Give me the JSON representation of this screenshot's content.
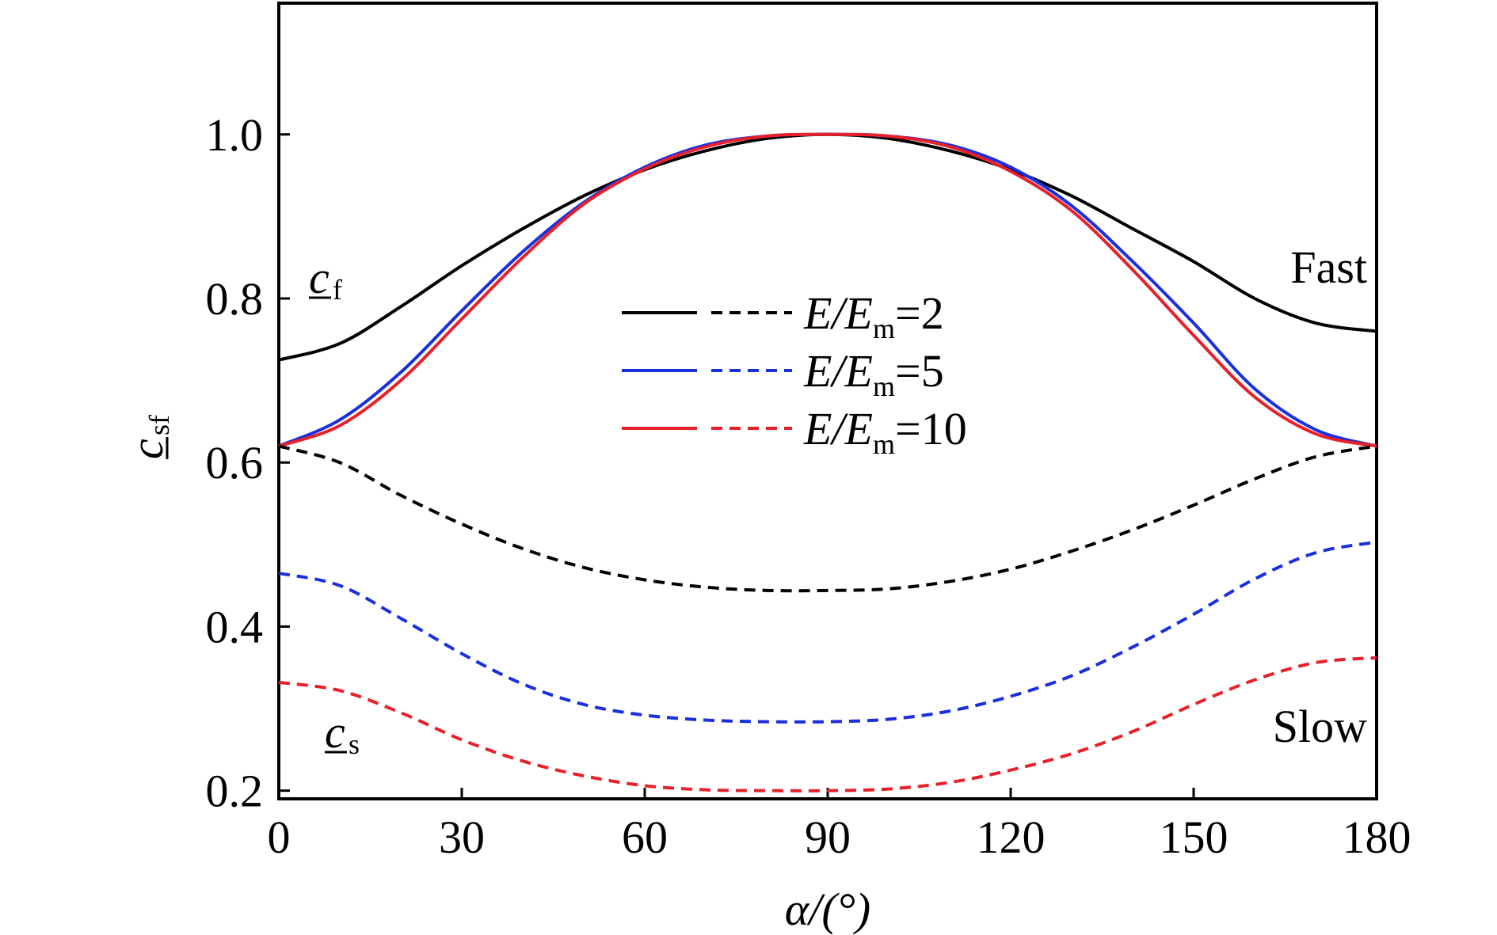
{
  "chart_data": {
    "type": "line",
    "xlabel": "α/(°)",
    "ylabel": "c_sf",
    "xlim": [
      0,
      180
    ],
    "ylim": [
      0.19,
      1.16
    ],
    "xticks": [
      0,
      30,
      60,
      90,
      120,
      150,
      180
    ],
    "yticks": [
      0.2,
      0.4,
      0.6,
      0.8,
      1.0
    ],
    "xtick_labels": [
      "0",
      "30",
      "60",
      "90",
      "120",
      "150",
      "180"
    ],
    "ytick_labels": [
      "0.2",
      "0.4",
      "0.6",
      "0.8",
      "1.0"
    ],
    "grid": false,
    "legend_position": "center",
    "annotations": {
      "fast": "Fast",
      "slow": "Slow",
      "cf_main": "c",
      "cf_sub": "f",
      "cs_main": "c",
      "cs_sub": "s",
      "ylabel_main": "c",
      "ylabel_sub": "sf",
      "xlabel": "α/(°)"
    },
    "legend": [
      {
        "prefix": "E/E",
        "sub": "m",
        "suffix": "=2",
        "color": "#000000"
      },
      {
        "prefix": "E/E",
        "sub": "m",
        "suffix": "=5",
        "color": "#1a2fe0"
      },
      {
        "prefix": "E/E",
        "sub": "m",
        "suffix": "=10",
        "color": "#e8202a"
      }
    ],
    "x": [
      0,
      10,
      20,
      30,
      40,
      50,
      60,
      70,
      80,
      90,
      100,
      110,
      120,
      130,
      140,
      150,
      160,
      170,
      180
    ],
    "series": [
      {
        "group": "E/Em=2",
        "kind": "fast",
        "style": "solid",
        "color": "#000000",
        "values": [
          0.725,
          0.745,
          0.79,
          0.84,
          0.885,
          0.925,
          0.957,
          0.98,
          0.995,
          1.0,
          0.995,
          0.98,
          0.957,
          0.925,
          0.885,
          0.845,
          0.8,
          0.77,
          0.76
        ]
      },
      {
        "group": "E/Em=5",
        "kind": "fast",
        "style": "solid",
        "color": "#1a2fe0",
        "values": [
          0.62,
          0.652,
          0.71,
          0.785,
          0.857,
          0.917,
          0.96,
          0.987,
          0.998,
          1.0,
          0.998,
          0.987,
          0.96,
          0.913,
          0.845,
          0.77,
          0.69,
          0.64,
          0.62
        ]
      },
      {
        "group": "E/Em=10",
        "kind": "fast",
        "style": "solid",
        "color": "#e8202a",
        "values": [
          0.62,
          0.645,
          0.7,
          0.775,
          0.85,
          0.915,
          0.958,
          0.985,
          0.998,
          1.0,
          0.998,
          0.985,
          0.955,
          0.907,
          0.835,
          0.755,
          0.68,
          0.635,
          0.62
        ]
      },
      {
        "group": "E/Em=2",
        "kind": "slow",
        "style": "dashed",
        "color": "#000000",
        "values": [
          0.62,
          0.6,
          0.56,
          0.525,
          0.495,
          0.472,
          0.457,
          0.448,
          0.444,
          0.444,
          0.446,
          0.455,
          0.47,
          0.492,
          0.518,
          0.548,
          0.58,
          0.607,
          0.62
        ]
      },
      {
        "group": "E/Em=5",
        "kind": "slow",
        "style": "dashed",
        "color": "#1a2fe0",
        "values": [
          0.465,
          0.45,
          0.41,
          0.367,
          0.33,
          0.305,
          0.292,
          0.286,
          0.284,
          0.284,
          0.287,
          0.297,
          0.315,
          0.34,
          0.375,
          0.415,
          0.458,
          0.49,
          0.503
        ]
      },
      {
        "group": "E/Em=10",
        "kind": "slow",
        "style": "dashed",
        "color": "#e8202a",
        "values": [
          0.332,
          0.322,
          0.295,
          0.262,
          0.236,
          0.218,
          0.206,
          0.201,
          0.2,
          0.2,
          0.202,
          0.21,
          0.225,
          0.245,
          0.272,
          0.305,
          0.335,
          0.356,
          0.362
        ]
      }
    ]
  }
}
